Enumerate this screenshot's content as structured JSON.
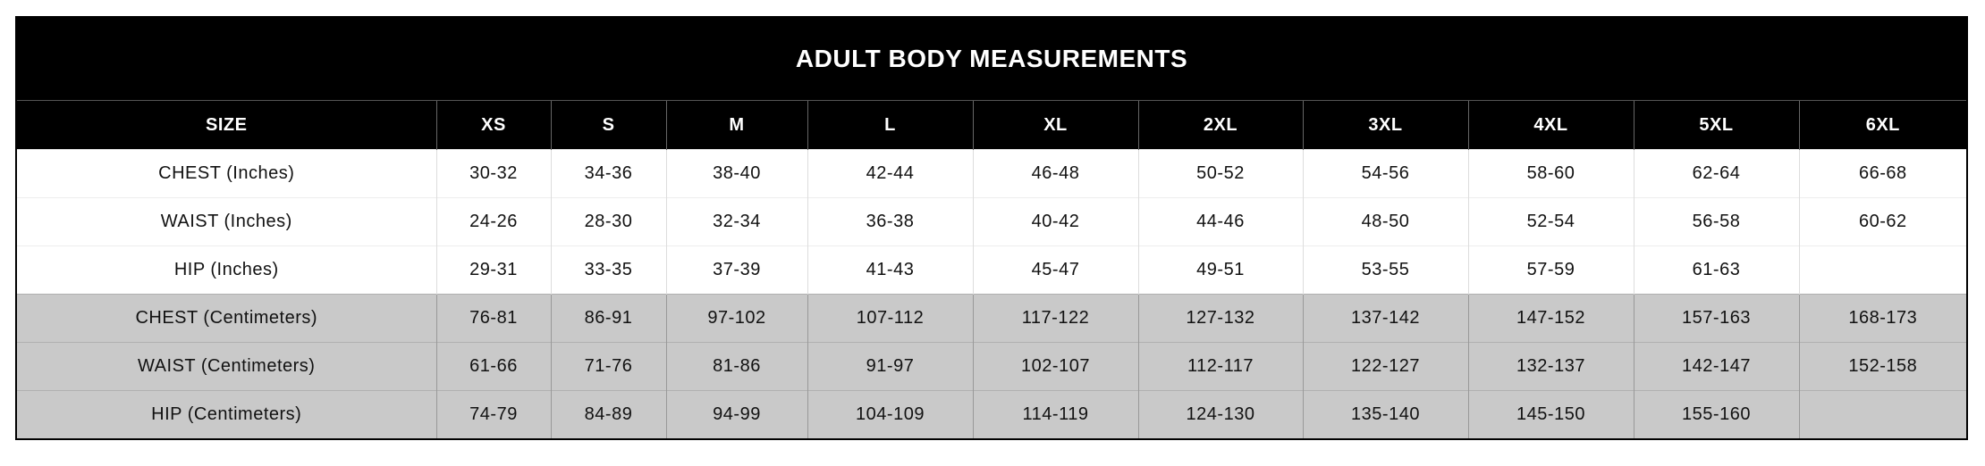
{
  "table": {
    "title": "ADULT BODY MEASUREMENTS",
    "header": [
      "SIZE",
      "XS",
      "S",
      "M",
      "L",
      "XL",
      "2XL",
      "3XL",
      "4XL",
      "5XL",
      "6XL"
    ],
    "rows": [
      [
        "CHEST (Inches)",
        "30-32",
        "34-36",
        "38-40",
        "42-44",
        "46-48",
        "50-52",
        "54-56",
        "58-60",
        "62-64",
        "66-68"
      ],
      [
        "WAIST (Inches)",
        "24-26",
        "28-30",
        "32-34",
        "36-38",
        "40-42",
        "44-46",
        "48-50",
        "52-54",
        "56-58",
        "60-62"
      ],
      [
        "HIP (Inches)",
        "29-31",
        "33-35",
        "37-39",
        "41-43",
        "45-47",
        "49-51",
        "53-55",
        "57-59",
        "61-63",
        null
      ],
      [
        "CHEST (Centimeters)",
        "76-81",
        "86-91",
        "97-102",
        "107-112",
        "117-122",
        "127-132",
        "137-142",
        "147-152",
        "157-163",
        "168-173"
      ],
      [
        "WAIST (Centimeters)",
        "61-66",
        "71-76",
        "81-86",
        "91-97",
        "102-107",
        "112-117",
        "122-127",
        "132-137",
        "142-147",
        "152-158"
      ],
      [
        "HIP (Centimeters)",
        "74-79",
        "84-89",
        "94-99",
        "104-109",
        "114-119",
        "124-130",
        "135-140",
        "145-150",
        "155-160",
        null
      ]
    ]
  }
}
